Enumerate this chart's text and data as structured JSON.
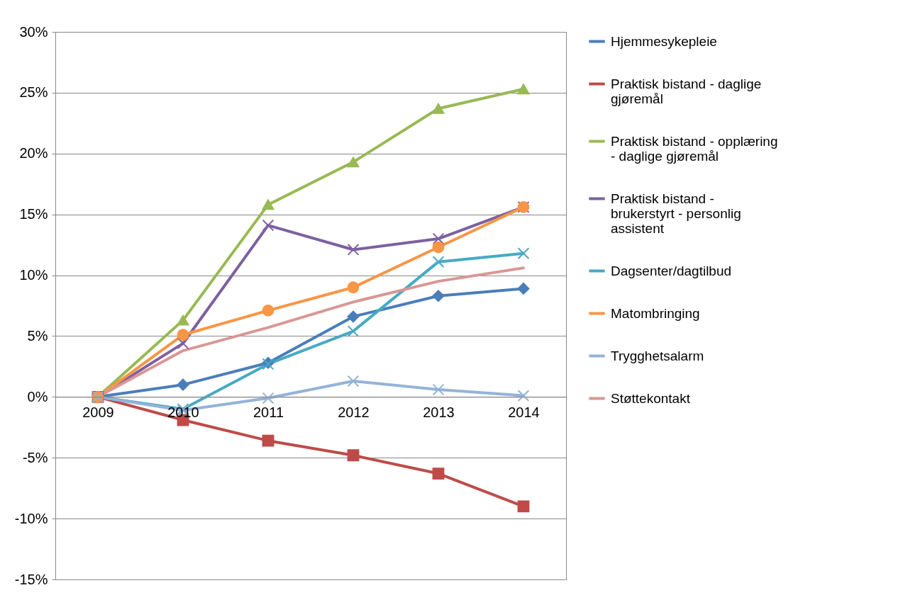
{
  "chart_data": {
    "type": "line",
    "categories": [
      "2009",
      "2010",
      "2011",
      "2012",
      "2013",
      "2014"
    ],
    "ylim": [
      -15,
      30
    ],
    "yticks": [
      {
        "value": -15,
        "label": "-15%"
      },
      {
        "value": -10,
        "label": "-10%"
      },
      {
        "value": -5,
        "label": "-5%"
      },
      {
        "value": 0,
        "label": "0%"
      },
      {
        "value": 5,
        "label": "5%"
      },
      {
        "value": 10,
        "label": "10%"
      },
      {
        "value": 15,
        "label": "15%"
      },
      {
        "value": 20,
        "label": "20%"
      },
      {
        "value": 25,
        "label": "25%"
      },
      {
        "value": 30,
        "label": "30%"
      }
    ],
    "grid": "y",
    "legend": "right",
    "series": [
      {
        "name": "Hjemmesykepleie",
        "color": "#4a7ebb",
        "marker": "diamond",
        "values": [
          0,
          1.0,
          2.8,
          6.6,
          8.3,
          8.9
        ]
      },
      {
        "name": "Praktisk bistand - daglige gjøremål",
        "color": "#be4b48",
        "marker": "square",
        "values": [
          0,
          -1.9,
          -3.6,
          -4.8,
          -6.3,
          -9.0
        ]
      },
      {
        "name": "Praktisk bistand - opplæring - daglige gjøremål",
        "color": "#98b954",
        "marker": "triangle",
        "values": [
          0,
          6.3,
          15.8,
          19.3,
          23.7,
          25.3
        ]
      },
      {
        "name": "Praktisk bistand - brukerstyrt - personlig assistent",
        "color": "#7d60a0",
        "marker": "cross",
        "values": [
          0,
          4.4,
          14.1,
          12.1,
          13.0,
          15.6
        ]
      },
      {
        "name": "Dagsenter/dagtilbud",
        "color": "#46aac5",
        "marker": "cross",
        "values": [
          0,
          -1.0,
          2.7,
          5.4,
          11.1,
          11.8
        ]
      },
      {
        "name": "Matombringing",
        "color": "#f79646",
        "marker": "circle",
        "values": [
          0,
          5.1,
          7.1,
          9.0,
          12.3,
          15.6
        ]
      },
      {
        "name": "Trygghetsalarm",
        "color": "#95b3d7",
        "marker": "cross",
        "values": [
          0,
          -1.1,
          -0.1,
          1.3,
          0.6,
          0.1
        ]
      },
      {
        "name": "Støttekontakt",
        "color": "#d99795",
        "marker": "none",
        "values": [
          0,
          3.8,
          5.7,
          7.8,
          9.5,
          10.6
        ]
      }
    ]
  }
}
